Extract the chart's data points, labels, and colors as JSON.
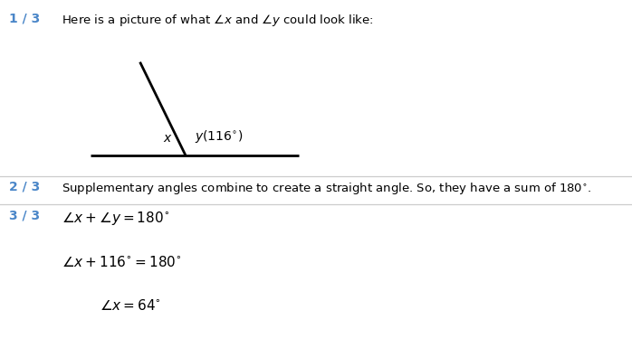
{
  "bg_color": "#ffffff",
  "step_color": "#4a86c8",
  "text_color": "#000000",
  "step1_label": "1 / 3",
  "step2_label": "2 / 3",
  "step3_label": "3 / 3",
  "step1_text": "Here is a picture of what $\\angle x$ and $\\angle y$ could look like:",
  "step2_text": "Supplementary angles combine to create a straight angle. So, they have a sum of $180^{\\circ}$.",
  "eq1": "$\\angle x + \\angle y = 180^{\\circ}$",
  "eq2": "$\\angle x + 116^{\\circ} = 180^{\\circ}$",
  "eq3": "$\\angle x = 64^{\\circ}$",
  "label_x_text": "$x$",
  "label_y_text": "$y(116^{\\circ})$"
}
